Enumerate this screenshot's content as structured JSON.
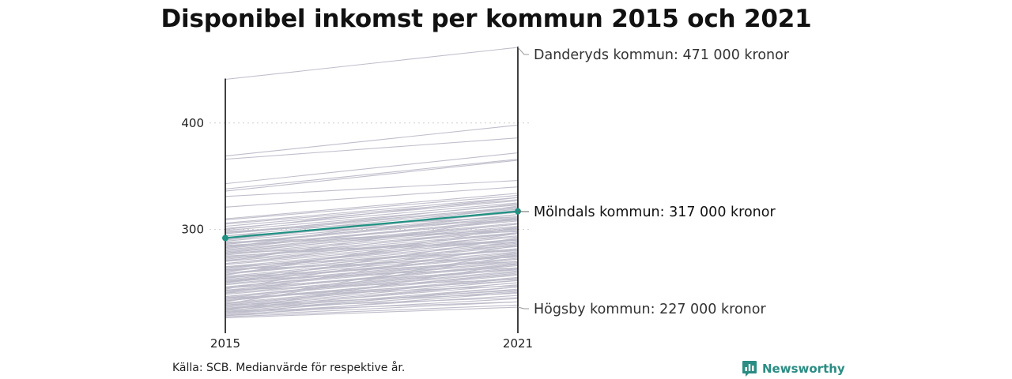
{
  "page": {
    "title": "Disponibel inkomst per kommun 2015 och 2021",
    "source": "Källa: SCB. Medianvärde för respektive år.",
    "brand": "Newsworthy",
    "brand_icon": "bar-chart-speech-bubble-icon",
    "brand_color": "#2a8c83"
  },
  "chart_data": {
    "type": "line",
    "subtype": "slope",
    "title": "Disponibel inkomst per kommun 2015 och 2021",
    "x": [
      "2015",
      "2021"
    ],
    "xlabel": "",
    "ylabel": "",
    "yticks": [
      300,
      400
    ],
    "ylim": [
      207,
      474
    ],
    "grid": true,
    "colors": {
      "background_series": "#bcbac8",
      "highlight": "#1f9283",
      "axis": "#111111",
      "gridline": "#cfcfcf"
    },
    "highlight": {
      "name": "Mölndals kommun",
      "values": [
        292,
        317
      ],
      "label": "Mölndals kommun: 317 000 kronor"
    },
    "annotations": [
      {
        "name": "Danderyds kommun",
        "value_2021": 471,
        "label": "Danderyds kommun: 471 000 kronor"
      },
      {
        "name": "Mölndals kommun",
        "value_2021": 317,
        "label": "Mölndals kommun: 317 000 kronor"
      },
      {
        "name": "Högsby kommun",
        "value_2021": 227,
        "label": "Högsby kommun: 227 000 kronor"
      }
    ],
    "series_2015_2021": [
      [
        441,
        471
      ],
      [
        369,
        398
      ],
      [
        366,
        386
      ],
      [
        343,
        372
      ],
      [
        338,
        366
      ],
      [
        336,
        365
      ],
      [
        331,
        346
      ],
      [
        321,
        340
      ],
      [
        310,
        334
      ],
      [
        309,
        332
      ],
      [
        306,
        330
      ],
      [
        305,
        328
      ],
      [
        303,
        327
      ],
      [
        301,
        325
      ],
      [
        299,
        323
      ],
      [
        297,
        321
      ],
      [
        296,
        320
      ],
      [
        294,
        319
      ],
      [
        292,
        317
      ],
      [
        291,
        316
      ],
      [
        289,
        314
      ],
      [
        287,
        312
      ],
      [
        286,
        311
      ],
      [
        284,
        309
      ],
      [
        283,
        308
      ],
      [
        281,
        306
      ],
      [
        280,
        305
      ],
      [
        279,
        303
      ],
      [
        277,
        302
      ],
      [
        276,
        300
      ],
      [
        274,
        299
      ],
      [
        273,
        297
      ],
      [
        271,
        296
      ],
      [
        270,
        294
      ],
      [
        268,
        293
      ],
      [
        267,
        291
      ],
      [
        265,
        290
      ],
      [
        264,
        288
      ],
      [
        262,
        287
      ],
      [
        261,
        285
      ],
      [
        259,
        284
      ],
      [
        258,
        282
      ],
      [
        256,
        281
      ],
      [
        255,
        279
      ],
      [
        253,
        278
      ],
      [
        252,
        276
      ],
      [
        251,
        275
      ],
      [
        249,
        273
      ],
      [
        248,
        272
      ],
      [
        246,
        270
      ],
      [
        245,
        269
      ],
      [
        243,
        267
      ],
      [
        242,
        266
      ],
      [
        240,
        264
      ],
      [
        239,
        263
      ],
      [
        237,
        261
      ],
      [
        236,
        260
      ],
      [
        234,
        258
      ],
      [
        233,
        257
      ],
      [
        231,
        255
      ],
      [
        230,
        254
      ],
      [
        228,
        252
      ],
      [
        227,
        250
      ],
      [
        226,
        248
      ],
      [
        224,
        246
      ],
      [
        223,
        244
      ],
      [
        222,
        242
      ],
      [
        221,
        238
      ],
      [
        220,
        235
      ],
      [
        219,
        232
      ],
      [
        218,
        229
      ],
      [
        217,
        227
      ],
      [
        300,
        330
      ],
      [
        296,
        324
      ],
      [
        290,
        318
      ],
      [
        286,
        314
      ],
      [
        282,
        310
      ],
      [
        278,
        305
      ],
      [
        272,
        301
      ],
      [
        268,
        297
      ],
      [
        263,
        291
      ],
      [
        258,
        286
      ],
      [
        254,
        282
      ],
      [
        250,
        277
      ],
      [
        246,
        272
      ],
      [
        241,
        268
      ],
      [
        237,
        263
      ],
      [
        233,
        259
      ],
      [
        229,
        254
      ],
      [
        225,
        250
      ],
      [
        221,
        246
      ],
      [
        219,
        241
      ],
      [
        285,
        300
      ],
      [
        275,
        290
      ],
      [
        265,
        280
      ],
      [
        255,
        270
      ],
      [
        245,
        262
      ],
      [
        235,
        252
      ],
      [
        226,
        243
      ],
      [
        260,
        296
      ],
      [
        250,
        292
      ],
      [
        240,
        285
      ],
      [
        230,
        276
      ],
      [
        224,
        268
      ],
      [
        283,
        322
      ],
      [
        270,
        311
      ],
      [
        257,
        302
      ],
      [
        244,
        289
      ],
      [
        232,
        278
      ],
      [
        226,
        236
      ],
      [
        223,
        232
      ],
      [
        229,
        240
      ],
      [
        236,
        247
      ],
      [
        243,
        253
      ],
      [
        278,
        288
      ],
      [
        288,
        298
      ],
      [
        298,
        312
      ],
      [
        294,
        309
      ],
      [
        262,
        274
      ],
      [
        252,
        264
      ]
    ]
  }
}
